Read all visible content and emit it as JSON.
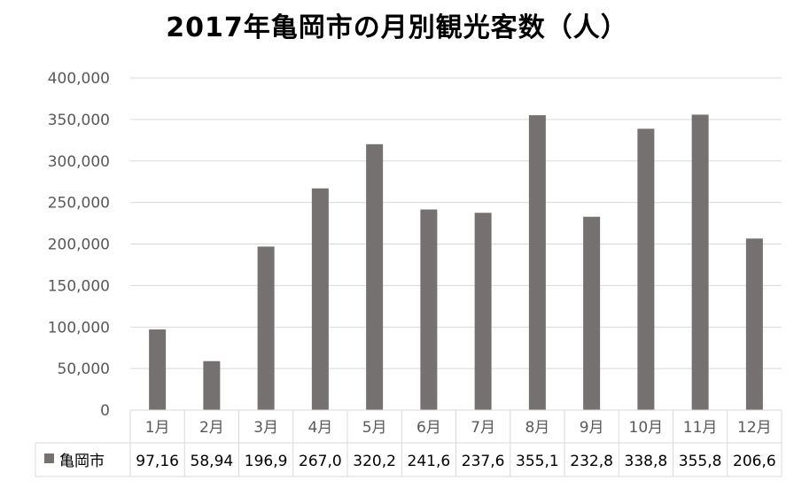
{
  "chart_data": {
    "type": "bar",
    "title": "2017年亀岡市の月別観光客数（人）",
    "categories": [
      "1月",
      "2月",
      "3月",
      "4月",
      "5月",
      "6月",
      "7月",
      "8月",
      "9月",
      "10月",
      "11月",
      "12月"
    ],
    "series": [
      {
        "name": "亀岡市",
        "color": "#767171",
        "values": [
          97160,
          58940,
          196900,
          267000,
          320200,
          241600,
          237600,
          355100,
          232800,
          338800,
          355800,
          206600
        ],
        "table_labels": [
          "97,16",
          "58,94",
          "196,9",
          "267,0",
          "320,2",
          "241,6",
          "237,6",
          "355,1",
          "232,8",
          "338,8",
          "355,8",
          "206,6"
        ]
      }
    ],
    "yticks": [
      "0",
      "50,000",
      "100,000",
      "150,000",
      "200,000",
      "250,000",
      "300,000",
      "350,000",
      "400,000"
    ],
    "ylim": [
      0,
      400000
    ],
    "grid": true,
    "legend": "data-table"
  }
}
